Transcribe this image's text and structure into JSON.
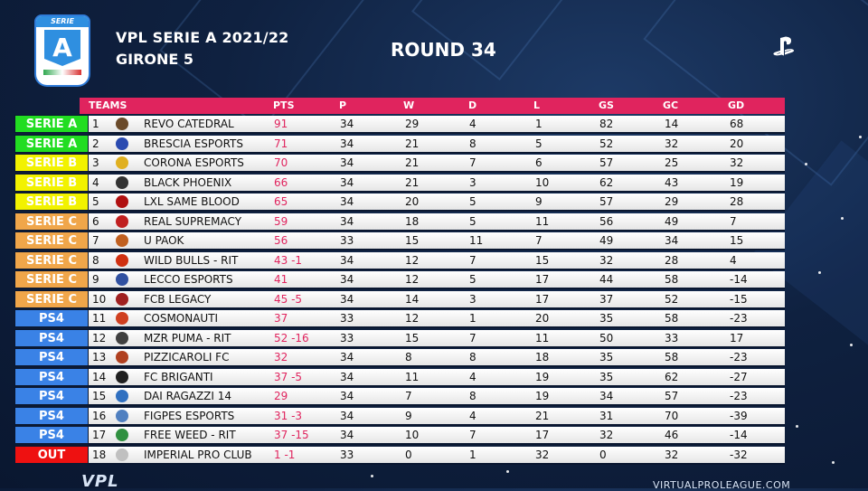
{
  "header": {
    "logo_top": "SERIE",
    "logo_letter": "A",
    "title": "VPL SERIE A 2021/22",
    "subtitle": "GIRONE 5",
    "round": "ROUND 34"
  },
  "table": {
    "columns": [
      "TEAMS",
      "PTS",
      "P",
      "W",
      "D",
      "L",
      "GS",
      "GC",
      "GD"
    ],
    "zone_colors": {
      "SERIE A": "#22dd22",
      "SERIE B": "#f2f200",
      "SERIE C": "#f0a64a",
      "PS4": "#3a82e6",
      "OUT": "#ee1111"
    },
    "rows": [
      {
        "zone": "SERIE A",
        "pos": "1",
        "team": "REVO CATEDRAL",
        "pts": "91",
        "p": "34",
        "w": "29",
        "d": "4",
        "l": "1",
        "gs": "82",
        "gc": "14",
        "gd": "68",
        "crest": "#6a4a2a"
      },
      {
        "zone": "SERIE A",
        "pos": "2",
        "team": "BRESCIA ESPORTS",
        "pts": "71",
        "p": "34",
        "w": "21",
        "d": "8",
        "l": "5",
        "gs": "52",
        "gc": "32",
        "gd": "20",
        "crest": "#2a4ab0"
      },
      {
        "zone": "SERIE B",
        "pos": "3",
        "team": "CORONA ESPORTS",
        "pts": "70",
        "p": "34",
        "w": "21",
        "d": "7",
        "l": "6",
        "gs": "57",
        "gc": "25",
        "gd": "32",
        "crest": "#e0b020"
      },
      {
        "zone": "SERIE B",
        "pos": "4",
        "team": "BLACK PHOENIX",
        "pts": "66",
        "p": "34",
        "w": "21",
        "d": "3",
        "l": "10",
        "gs": "62",
        "gc": "43",
        "gd": "19",
        "crest": "#333333"
      },
      {
        "zone": "SERIE B",
        "pos": "5",
        "team": "LXL SAME BLOOD",
        "pts": "65",
        "p": "34",
        "w": "20",
        "d": "5",
        "l": "9",
        "gs": "57",
        "gc": "29",
        "gd": "28",
        "crest": "#b01010"
      },
      {
        "zone": "SERIE C",
        "pos": "6",
        "team": "REAL SUPREMACY",
        "pts": "59",
        "p": "34",
        "w": "18",
        "d": "5",
        "l": "11",
        "gs": "56",
        "gc": "49",
        "gd": "7",
        "crest": "#c02020"
      },
      {
        "zone": "SERIE C",
        "pos": "7",
        "team": "U PAOK",
        "pts": "56",
        "p": "33",
        "w": "15",
        "d": "11",
        "l": "7",
        "gs": "49",
        "gc": "34",
        "gd": "15",
        "crest": "#c06020"
      },
      {
        "zone": "SERIE C",
        "pos": "8",
        "team": "WILD BULLS - RIT",
        "pts": "43 -1",
        "p": "34",
        "w": "12",
        "d": "7",
        "l": "15",
        "gs": "32",
        "gc": "28",
        "gd": "4",
        "crest": "#d03010"
      },
      {
        "zone": "SERIE C",
        "pos": "9",
        "team": "LECCO ESPORTS",
        "pts": "41",
        "p": "34",
        "w": "12",
        "d": "5",
        "l": "17",
        "gs": "44",
        "gc": "58",
        "gd": "-14",
        "crest": "#3050a0"
      },
      {
        "zone": "SERIE C",
        "pos": "10",
        "team": "FCB LEGACY",
        "pts": "45 -5",
        "p": "34",
        "w": "14",
        "d": "3",
        "l": "17",
        "gs": "37",
        "gc": "52",
        "gd": "-15",
        "crest": "#a02020"
      },
      {
        "zone": "PS4",
        "pos": "11",
        "team": "COSMONAUTI",
        "pts": "37",
        "p": "33",
        "w": "12",
        "d": "1",
        "l": "20",
        "gs": "35",
        "gc": "58",
        "gd": "-23",
        "crest": "#d04020"
      },
      {
        "zone": "PS4",
        "pos": "12",
        "team": "MZR PUMA - RIT",
        "pts": "52 -16",
        "p": "33",
        "w": "15",
        "d": "7",
        "l": "11",
        "gs": "50",
        "gc": "33",
        "gd": "17",
        "crest": "#404040"
      },
      {
        "zone": "PS4",
        "pos": "13",
        "team": "PIZZICAROLI FC",
        "pts": "32",
        "p": "34",
        "w": "8",
        "d": "8",
        "l": "18",
        "gs": "35",
        "gc": "58",
        "gd": "-23",
        "crest": "#b04020"
      },
      {
        "zone": "PS4",
        "pos": "14",
        "team": "FC BRIGANTI",
        "pts": "37 -5",
        "p": "34",
        "w": "11",
        "d": "4",
        "l": "19",
        "gs": "35",
        "gc": "62",
        "gd": "-27",
        "crest": "#202020"
      },
      {
        "zone": "PS4",
        "pos": "15",
        "team": "DAI RAGAZZI 14",
        "pts": "29",
        "p": "34",
        "w": "7",
        "d": "8",
        "l": "19",
        "gs": "34",
        "gc": "57",
        "gd": "-23",
        "crest": "#3070c0"
      },
      {
        "zone": "PS4",
        "pos": "16",
        "team": "FIGPES ESPORTS",
        "pts": "31 -3",
        "p": "34",
        "w": "9",
        "d": "4",
        "l": "21",
        "gs": "31",
        "gc": "70",
        "gd": "-39",
        "crest": "#5080c0"
      },
      {
        "zone": "PS4",
        "pos": "17",
        "team": "FREE WEED - RIT",
        "pts": "37 -15",
        "p": "34",
        "w": "10",
        "d": "7",
        "l": "17",
        "gs": "32",
        "gc": "46",
        "gd": "-14",
        "crest": "#309040"
      },
      {
        "zone": "OUT",
        "pos": "18",
        "team": "IMPERIAL PRO CLUB",
        "pts": "1 -1",
        "p": "33",
        "w": "0",
        "d": "1",
        "l": "32",
        "gs": "0",
        "gc": "32",
        "gd": "-32",
        "crest": "#c0c0c0"
      }
    ]
  },
  "footer": {
    "logo": "VPL",
    "url": "VIRTUALPROLEAGUE.COM"
  }
}
